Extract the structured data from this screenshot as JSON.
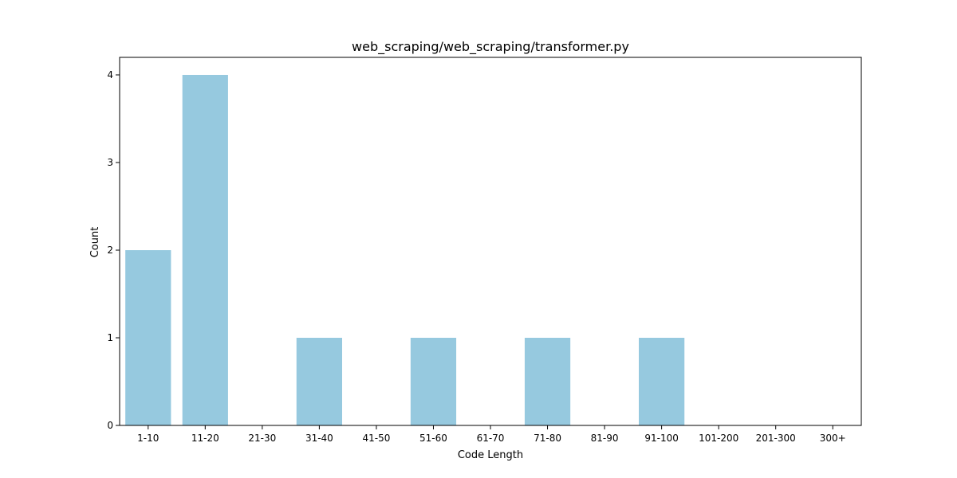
{
  "chart_data": {
    "type": "bar",
    "title": "web_scraping/web_scraping/transformer.py",
    "xlabel": "Code Length",
    "ylabel": "Count",
    "categories": [
      "1-10",
      "11-20",
      "21-30",
      "31-40",
      "41-50",
      "51-60",
      "61-70",
      "71-80",
      "81-90",
      "91-100",
      "101-200",
      "201-300",
      "300+"
    ],
    "values": [
      2,
      4,
      0,
      1,
      0,
      1,
      0,
      1,
      0,
      1,
      0,
      0,
      0
    ],
    "ylim": [
      0,
      4.2
    ],
    "yticks": [
      0,
      1,
      2,
      3,
      4
    ],
    "grid": false,
    "legend": "none",
    "bar_color": "#96c9df"
  }
}
